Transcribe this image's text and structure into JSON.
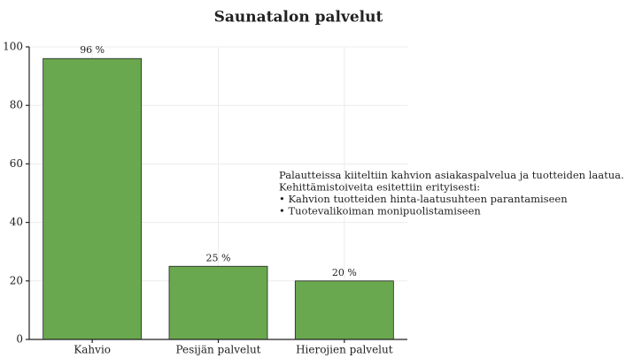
{
  "chart_data": {
    "type": "bar",
    "title": "Saunatalon palvelut",
    "categories": [
      "Kahvio",
      "Pesijän palvelut",
      "Hierojien palvelut"
    ],
    "values": [
      96,
      25,
      20
    ],
    "value_labels": [
      "96 %",
      "25 %",
      "20 %"
    ],
    "color": "#6aa84f",
    "ylim": [
      0,
      100
    ],
    "yticks": [
      0,
      20,
      40,
      60,
      80,
      100
    ],
    "grid": true,
    "annotation": [
      "Palautteissa kiiteltiin kahvion asiakaspalvelua ja tuotteiden laatua.",
      "Kehittämistoiveita esitettiin erityisesti:",
      "• Kahvion tuotteiden hinta-laatusuhteen parantamiseen",
      "• Tuotevalikoiman monipuolistamiseen"
    ]
  }
}
